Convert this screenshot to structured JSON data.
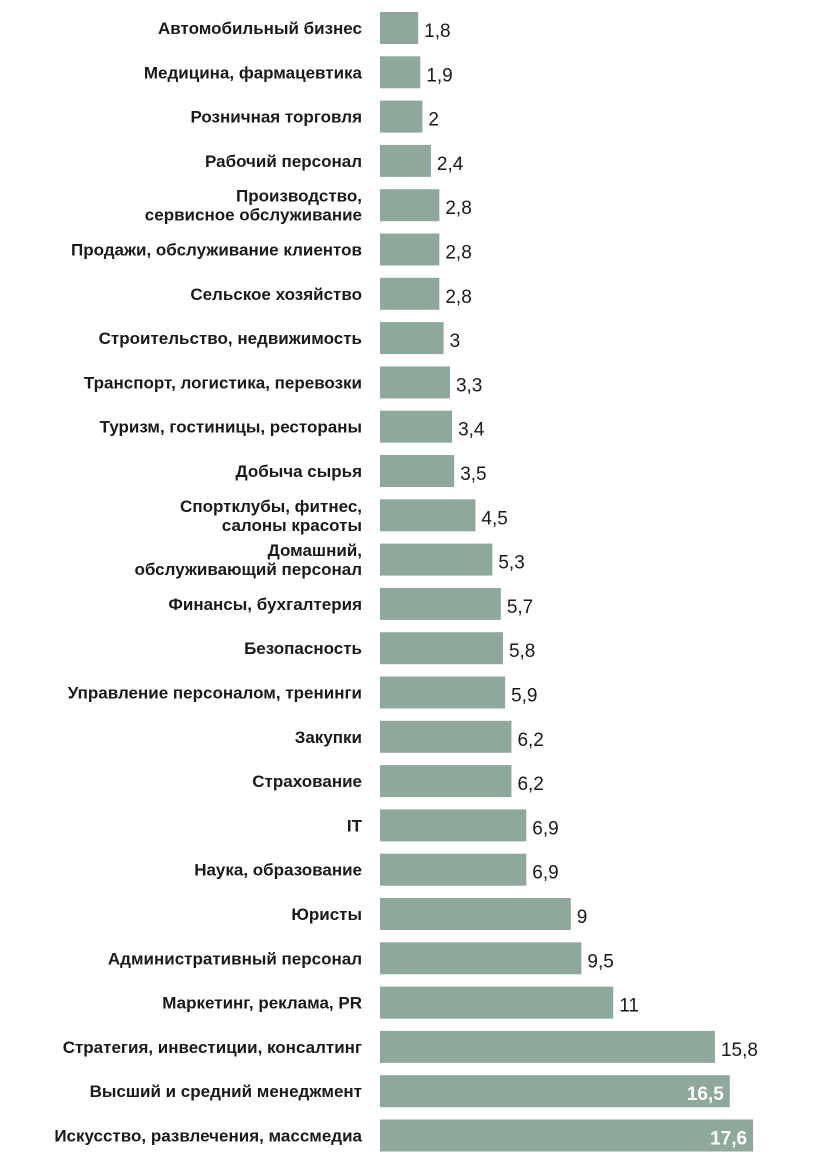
{
  "chart_data": {
    "type": "bar",
    "orientation": "horizontal",
    "title": "",
    "xlabel": "",
    "ylabel": "",
    "bar_color": "#8fa89c",
    "xlim": [
      0,
      17.6
    ],
    "grid": false,
    "categories": [
      [
        "Автомобильный бизнес"
      ],
      [
        "Медицина, фармацевтика"
      ],
      [
        "Розничная торговля"
      ],
      [
        "Рабочий персонал"
      ],
      [
        "Производство,",
        "сервисное обслуживание"
      ],
      [
        "Продажи, обслуживание клиентов"
      ],
      [
        "Сельское хозяйство"
      ],
      [
        "Строительство, недвижимость"
      ],
      [
        "Транспорт, логистика, перевозки"
      ],
      [
        "Туризм, гостиницы, рестораны"
      ],
      [
        "Добыча сырья"
      ],
      [
        "Спортклубы, фитнес,",
        "салоны красоты"
      ],
      [
        "Домашний,",
        "обслуживающий персонал"
      ],
      [
        "Финансы, бухгалтерия"
      ],
      [
        "Безопасность"
      ],
      [
        "Управление персоналом, тренинги"
      ],
      [
        "Закупки"
      ],
      [
        "Страхование"
      ],
      [
        "IT"
      ],
      [
        "Наука, образование"
      ],
      [
        "Юристы"
      ],
      [
        "Административный персонал"
      ],
      [
        "Маркетинг, реклама, PR"
      ],
      [
        "Стратегия, инвестиции, консалтинг"
      ],
      [
        "Высший и средний менеджмент"
      ],
      [
        "Искусство, развлечения, массмедиа"
      ]
    ],
    "values": [
      1.8,
      1.9,
      2,
      2.4,
      2.8,
      2.8,
      2.8,
      3,
      3.3,
      3.4,
      3.5,
      4.5,
      5.3,
      5.7,
      5.8,
      5.9,
      6.2,
      6.2,
      6.9,
      6.9,
      9,
      9.5,
      11,
      15.8,
      16.5,
      17.6
    ],
    "value_labels": [
      "1,8",
      "1,9",
      "2",
      "2,4",
      "2,8",
      "2,8",
      "2,8",
      "3",
      "3,3",
      "3,4",
      "3,5",
      "4,5",
      "5,3",
      "5,7",
      "5,8",
      "5,9",
      "6,2",
      "6,2",
      "6,9",
      "6,9",
      "9",
      "9,5",
      "11",
      "15,8",
      "16,5",
      "17,6"
    ],
    "labels_inside_bar": [
      false,
      false,
      false,
      false,
      false,
      false,
      false,
      false,
      false,
      false,
      false,
      false,
      false,
      false,
      false,
      false,
      false,
      false,
      false,
      false,
      false,
      false,
      false,
      false,
      true,
      true
    ]
  }
}
